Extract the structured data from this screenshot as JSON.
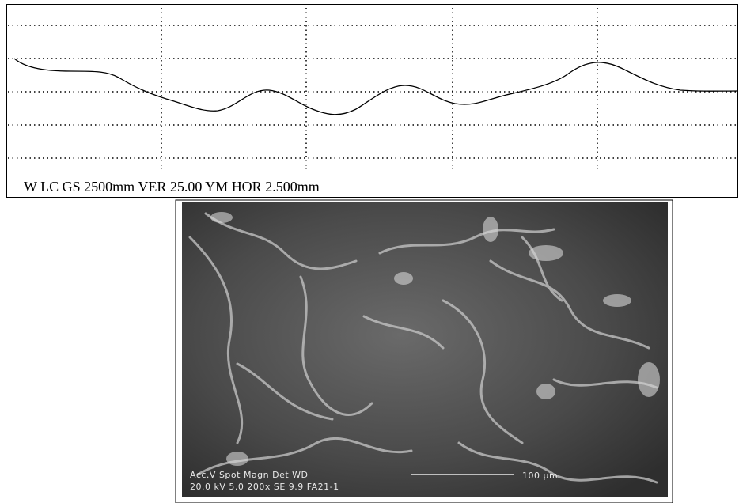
{
  "profile": {
    "caption": "W LC GS 2500mm VER 25.00 YM HOR 2.500mm"
  },
  "micrograph": {
    "header_line": "Acc.V  Spot Magn   Det  WD",
    "value_line": "20.0 kV 5.0  200x   SE  9.9  FA21-1",
    "scale_bar": "100 µm"
  }
}
